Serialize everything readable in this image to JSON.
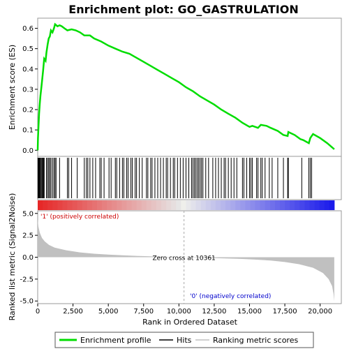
{
  "chart_data": {
    "type": "line",
    "title": "Enrichment plot: GO_GASTRULATION",
    "xlabel": "Rank in Ordered Dataset",
    "xlim": [
      0,
      21500
    ],
    "x_ticks": [
      0,
      2500,
      5000,
      7500,
      10000,
      12500,
      15000,
      17500,
      20000
    ],
    "x_tick_labels": [
      "0",
      "2,500",
      "5,000",
      "7,500",
      "10,000",
      "12,500",
      "15,000",
      "17,500",
      "20,000"
    ],
    "es_panel": {
      "ylabel": "Enrichment score (ES)",
      "ylim": [
        -0.03,
        0.65
      ],
      "y_ticks": [
        0.0,
        0.1,
        0.2,
        0.3,
        0.4,
        0.5,
        0.6
      ],
      "y_tick_labels": [
        "0.0",
        "0.1",
        "0.2",
        "0.3",
        "0.4",
        "0.5",
        "0.6"
      ],
      "color": "#00dd00",
      "series": {
        "name": "Enrichment profile",
        "points": [
          [
            0,
            0.0
          ],
          [
            20,
            0.06
          ],
          [
            60,
            0.12
          ],
          [
            100,
            0.18
          ],
          [
            150,
            0.23
          ],
          [
            200,
            0.27
          ],
          [
            260,
            0.31
          ],
          [
            320,
            0.35
          ],
          [
            380,
            0.39
          ],
          [
            420,
            0.42
          ],
          [
            460,
            0.45
          ],
          [
            560,
            0.44
          ],
          [
            620,
            0.48
          ],
          [
            700,
            0.52
          ],
          [
            780,
            0.55
          ],
          [
            860,
            0.56
          ],
          [
            940,
            0.59
          ],
          [
            1050,
            0.58
          ],
          [
            1150,
            0.6
          ],
          [
            1230,
            0.62
          ],
          [
            1400,
            0.61
          ],
          [
            1550,
            0.615
          ],
          [
            1700,
            0.61
          ],
          [
            1900,
            0.6
          ],
          [
            2100,
            0.59
          ],
          [
            2400,
            0.595
          ],
          [
            2700,
            0.59
          ],
          [
            3000,
            0.58
          ],
          [
            3300,
            0.565
          ],
          [
            3700,
            0.565
          ],
          [
            4000,
            0.55
          ],
          [
            4500,
            0.535
          ],
          [
            5000,
            0.515
          ],
          [
            5500,
            0.5
          ],
          [
            6000,
            0.485
          ],
          [
            6500,
            0.475
          ],
          [
            7000,
            0.455
          ],
          [
            7500,
            0.435
          ],
          [
            8000,
            0.415
          ],
          [
            8500,
            0.395
          ],
          [
            9000,
            0.375
          ],
          [
            9500,
            0.355
          ],
          [
            10000,
            0.335
          ],
          [
            10500,
            0.31
          ],
          [
            11000,
            0.29
          ],
          [
            11500,
            0.265
          ],
          [
            12000,
            0.245
          ],
          [
            12500,
            0.225
          ],
          [
            13000,
            0.2
          ],
          [
            13500,
            0.18
          ],
          [
            14000,
            0.16
          ],
          [
            14500,
            0.135
          ],
          [
            15000,
            0.115
          ],
          [
            15200,
            0.12
          ],
          [
            15600,
            0.11
          ],
          [
            15800,
            0.125
          ],
          [
            16200,
            0.12
          ],
          [
            16500,
            0.11
          ],
          [
            17000,
            0.095
          ],
          [
            17400,
            0.075
          ],
          [
            17700,
            0.07
          ],
          [
            17750,
            0.09
          ],
          [
            18200,
            0.075
          ],
          [
            18600,
            0.055
          ],
          [
            18800,
            0.05
          ],
          [
            19200,
            0.035
          ],
          [
            19300,
            0.06
          ],
          [
            19500,
            0.08
          ],
          [
            20000,
            0.06
          ],
          [
            20500,
            0.035
          ],
          [
            21000,
            0.005
          ]
        ]
      }
    },
    "hits_panel": {
      "label": "Hits",
      "positions": [
        20,
        60,
        100,
        150,
        200,
        260,
        320,
        380,
        420,
        460,
        620,
        700,
        780,
        860,
        940,
        1050,
        1150,
        1230,
        1300,
        1550,
        2100,
        2200,
        2400,
        2800,
        3300,
        3450,
        3550,
        3700,
        3900,
        4100,
        4400,
        4500,
        4700,
        5050,
        5200,
        5500,
        5600,
        5800,
        6000,
        6100,
        6300,
        6400,
        6600,
        6700,
        6900,
        7000,
        7200,
        7400,
        7700,
        7800,
        8000,
        8100,
        8300,
        8500,
        8700,
        8900,
        9100,
        9200,
        9400,
        9600,
        9700,
        9900,
        10100,
        10300,
        10500,
        10700,
        10900,
        11000,
        11100,
        11200,
        11300,
        11400,
        11500,
        11600,
        11700,
        11900,
        12100,
        12400,
        12600,
        12800,
        13000,
        13200,
        13300,
        13500,
        13700,
        13900,
        14100,
        14500,
        14600,
        14800,
        15000,
        15100,
        15200,
        15500,
        15600,
        15800,
        15900,
        16100,
        16400,
        16600,
        17000,
        17400,
        17700,
        17750,
        18700,
        19200,
        19300,
        19400
      ]
    },
    "metric_panel": {
      "ylabel": "Ranked list metric (Signal2Noise)",
      "ylim": [
        -5.3,
        5.3
      ],
      "y_ticks": [
        -5.0,
        -2.5,
        0.0,
        2.5,
        5.0
      ],
      "y_tick_labels": [
        "-5.0",
        "-2.5",
        "0.0",
        "2.5",
        "5.0"
      ],
      "zero_cross": 10361,
      "zero_cross_label": "Zero cross at 10361",
      "pos_label": "'1' (positively correlated)",
      "neg_label": "'0' (negatively correlated)",
      "pos_color": "#cc0000",
      "neg_color": "#0000cc",
      "series": {
        "points": [
          [
            0,
            4.3
          ],
          [
            50,
            3.5
          ],
          [
            150,
            2.8
          ],
          [
            300,
            2.2
          ],
          [
            500,
            1.8
          ],
          [
            800,
            1.4
          ],
          [
            1200,
            1.1
          ],
          [
            2000,
            0.8
          ],
          [
            3000,
            0.55
          ],
          [
            4000,
            0.4
          ],
          [
            5000,
            0.3
          ],
          [
            6000,
            0.22
          ],
          [
            7000,
            0.15
          ],
          [
            8000,
            0.1
          ],
          [
            9000,
            0.05
          ],
          [
            10361,
            0.0
          ],
          [
            11500,
            -0.05
          ],
          [
            12500,
            -0.1
          ],
          [
            13500,
            -0.15
          ],
          [
            14500,
            -0.2
          ],
          [
            15500,
            -0.28
          ],
          [
            16500,
            -0.38
          ],
          [
            17500,
            -0.55
          ],
          [
            18500,
            -0.8
          ],
          [
            19500,
            -1.2
          ],
          [
            20200,
            -1.8
          ],
          [
            20600,
            -2.5
          ],
          [
            20850,
            -3.3
          ],
          [
            20950,
            -4.2
          ],
          [
            21000,
            -5.0
          ]
        ]
      }
    },
    "legend": {
      "entries": [
        {
          "label": "Enrichment profile",
          "color": "#00dd00"
        },
        {
          "label": "Hits",
          "color": "#000000"
        },
        {
          "label": "Ranking metric scores",
          "color": "#c0c0c0"
        }
      ]
    }
  }
}
